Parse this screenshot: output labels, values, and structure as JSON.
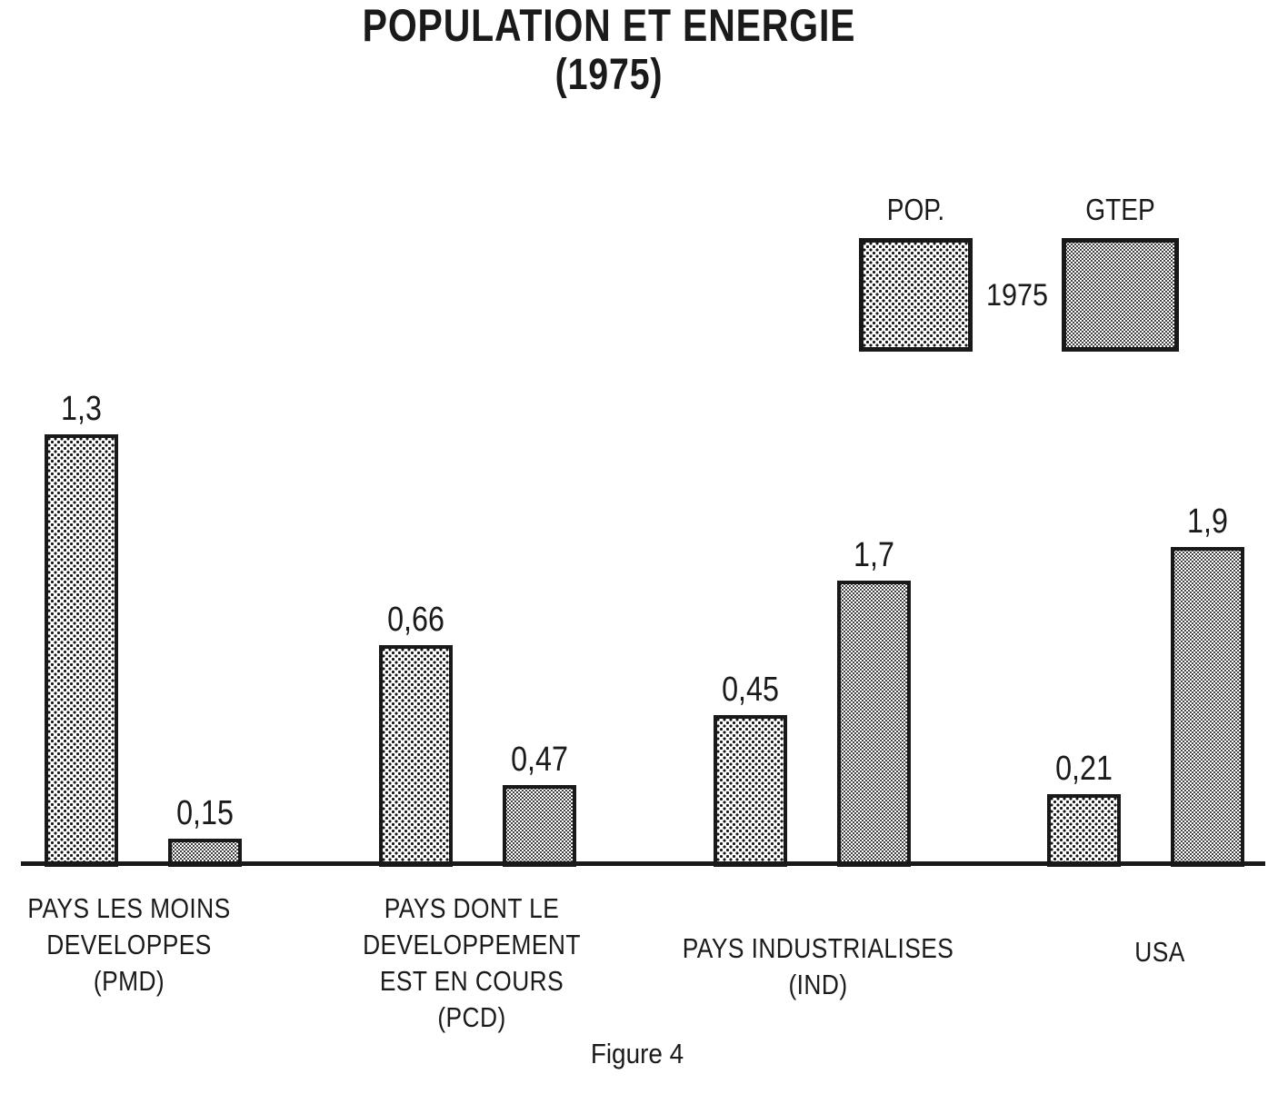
{
  "title": {
    "line1": "POPULATION ET ENERGIE",
    "line2": "(1975)"
  },
  "legend": {
    "pop_label": "POP.",
    "gtep_label": "GTEP",
    "year": "1975"
  },
  "figure_caption": "Figure 4",
  "chart_data": {
    "type": "bar",
    "title": "POPULATION ET ENERGIE (1975)",
    "year": "1975",
    "grid": false,
    "axes_shown": "x-baseline-only",
    "legend_position": "top-right",
    "value_label_format": "decimal-comma",
    "categories": [
      {
        "id": "PMD",
        "lines": [
          "PAYS LES MOINS",
          "DEVELOPPES",
          "(PMD)"
        ]
      },
      {
        "id": "PCD",
        "lines": [
          "PAYS DONT LE",
          "DEVELOPPEMENT",
          "EST EN COURS",
          "(PCD)"
        ]
      },
      {
        "id": "IND",
        "lines": [
          "PAYS INDUSTRIALISES",
          "(IND)"
        ]
      },
      {
        "id": "USA",
        "lines": [
          "USA"
        ]
      }
    ],
    "series": [
      {
        "name": "POP.",
        "pattern": "coarse-dots",
        "values": [
          1.3,
          0.66,
          0.45,
          0.21
        ],
        "labels": [
          "1,3",
          "0,66",
          "0,45",
          "0,21"
        ]
      },
      {
        "name": "GTEP",
        "pattern": "fine-dots",
        "values": [
          0.15,
          0.47,
          1.7,
          1.9
        ],
        "labels": [
          "0,15",
          "0,47",
          "1,7",
          "1,9"
        ]
      }
    ],
    "ink_color": "#1a1a1a",
    "background_color": "#ffffff"
  }
}
